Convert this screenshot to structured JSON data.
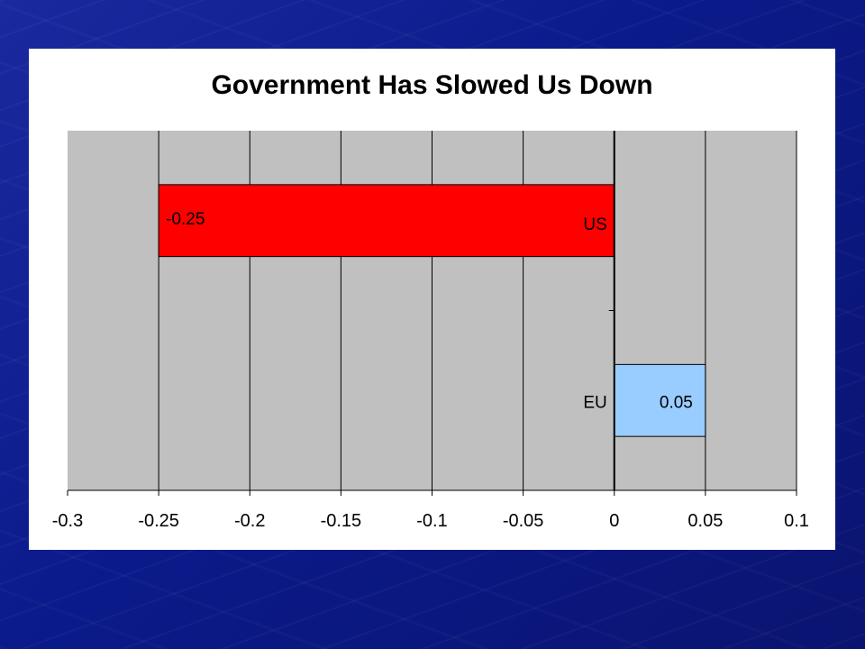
{
  "colors": {
    "background": "#0d1c8f",
    "plot_area": "#c0c0c0",
    "negative_bar": "#ff0000",
    "positive_bar": "#99ccff"
  },
  "chart_data": {
    "type": "bar",
    "orientation": "horizontal",
    "title": "Government Has Slowed Us Down",
    "categories": [
      "US",
      "EU"
    ],
    "values": [
      -0.25,
      0.05
    ],
    "data_labels": [
      "-0.25",
      "0.05"
    ],
    "bar_colors": [
      "#ff0000",
      "#99ccff"
    ],
    "xlim": [
      -0.3,
      0.1
    ],
    "xticks": [
      -0.3,
      -0.25,
      -0.2,
      -0.15,
      -0.1,
      -0.05,
      0,
      0.05,
      0.1
    ],
    "xtick_labels": [
      "-0.3",
      "-0.25",
      "-0.2",
      "-0.15",
      "-0.1",
      "-0.05",
      "0",
      "0.05",
      "0.1"
    ],
    "xlabel": "",
    "ylabel": "",
    "grid": "vertical",
    "legend": "none"
  }
}
